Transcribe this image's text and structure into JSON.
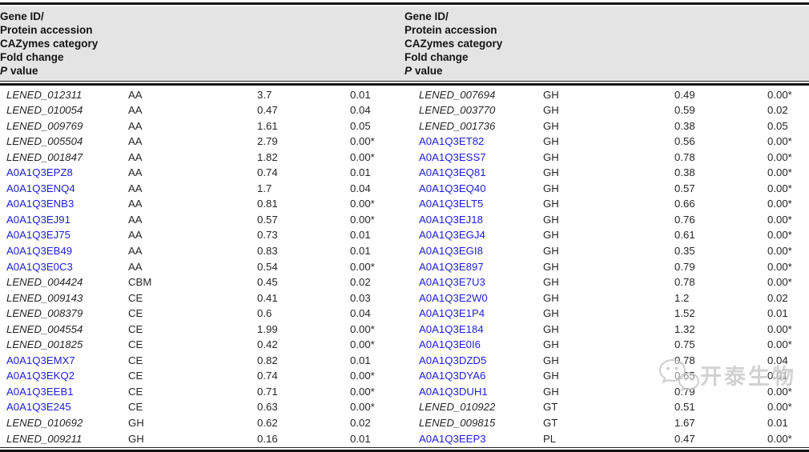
{
  "table": {
    "header": {
      "gene_id_line1": "Gene ID/",
      "gene_id_line2": "Protein accession",
      "cazymes": "CAZymes category",
      "fold_change": "Fold change",
      "p_label": "P",
      "p_rest": "value"
    },
    "left_rows": [
      {
        "id": "LENED_012311",
        "type": "gene",
        "category": "AA",
        "fold_change": "3.7",
        "p_value": "0.01"
      },
      {
        "id": "LENED_010054",
        "type": "gene",
        "category": "AA",
        "fold_change": "0.47",
        "p_value": "0.04"
      },
      {
        "id": "LENED_009769",
        "type": "gene",
        "category": "AA",
        "fold_change": "1.61",
        "p_value": "0.05"
      },
      {
        "id": "LENED_005504",
        "type": "gene",
        "category": "AA",
        "fold_change": "2.79",
        "p_value": "0.00*"
      },
      {
        "id": "LENED_001847",
        "type": "gene",
        "category": "AA",
        "fold_change": "1.82",
        "p_value": "0.00*"
      },
      {
        "id": "A0A1Q3EPZ8",
        "type": "accession",
        "category": "AA",
        "fold_change": "0.74",
        "p_value": "0.01"
      },
      {
        "id": "A0A1Q3ENQ4",
        "type": "accession",
        "category": "AA",
        "fold_change": "1.7",
        "p_value": "0.04"
      },
      {
        "id": "A0A1Q3ENB3",
        "type": "accession",
        "category": "AA",
        "fold_change": "0.81",
        "p_value": "0.00*"
      },
      {
        "id": "A0A1Q3EJ91",
        "type": "accession",
        "category": "AA",
        "fold_change": "0.57",
        "p_value": "0.00*"
      },
      {
        "id": "A0A1Q3EJ75",
        "type": "accession",
        "category": "AA",
        "fold_change": "0.73",
        "p_value": "0.01"
      },
      {
        "id": "A0A1Q3EB49",
        "type": "accession",
        "category": "AA",
        "fold_change": "0.83",
        "p_value": "0.01"
      },
      {
        "id": "A0A1Q3E0C3",
        "type": "accession",
        "category": "AA",
        "fold_change": "0.54",
        "p_value": "0.00*"
      },
      {
        "id": "LENED_004424",
        "type": "gene",
        "category": "CBM",
        "fold_change": "0.45",
        "p_value": "0.02"
      },
      {
        "id": "LENED_009143",
        "type": "gene",
        "category": "CE",
        "fold_change": "0.41",
        "p_value": "0.03"
      },
      {
        "id": "LENED_008379",
        "type": "gene",
        "category": "CE",
        "fold_change": "0.6",
        "p_value": "0.04"
      },
      {
        "id": "LENED_004554",
        "type": "gene",
        "category": "CE",
        "fold_change": "1.99",
        "p_value": "0.00*"
      },
      {
        "id": "LENED_001825",
        "type": "gene",
        "category": "CE",
        "fold_change": "0.42",
        "p_value": "0.00*"
      },
      {
        "id": "A0A1Q3EMX7",
        "type": "accession",
        "category": "CE",
        "fold_change": "0.82",
        "p_value": "0.01"
      },
      {
        "id": "A0A1Q3EKQ2",
        "type": "accession",
        "category": "CE",
        "fold_change": "0.74",
        "p_value": "0.00*"
      },
      {
        "id": "A0A1Q3EEB1",
        "type": "accession",
        "category": "CE",
        "fold_change": "0.71",
        "p_value": "0.00*"
      },
      {
        "id": "A0A1Q3E245",
        "type": "accession",
        "category": "CE",
        "fold_change": "0.63",
        "p_value": "0.00*"
      },
      {
        "id": "LENED_010692",
        "type": "gene",
        "category": "GH",
        "fold_change": "0.62",
        "p_value": "0.02"
      },
      {
        "id": "LENED_009211",
        "type": "gene",
        "category": "GH",
        "fold_change": "0.16",
        "p_value": "0.01"
      }
    ],
    "right_rows": [
      {
        "id": "LENED_007694",
        "type": "gene",
        "category": "GH",
        "fold_change": "0.49",
        "p_value": "0.00*"
      },
      {
        "id": "LENED_003770",
        "type": "gene",
        "category": "GH",
        "fold_change": "0.59",
        "p_value": "0.02"
      },
      {
        "id": "LENED_001736",
        "type": "gene",
        "category": "GH",
        "fold_change": "0.38",
        "p_value": "0.05"
      },
      {
        "id": "A0A1Q3ET82",
        "type": "accession",
        "category": "GH",
        "fold_change": "0.56",
        "p_value": "0.00*"
      },
      {
        "id": "A0A1Q3ESS7",
        "type": "accession",
        "category": "GH",
        "fold_change": "0.78",
        "p_value": "0.00*"
      },
      {
        "id": "A0A1Q3EQ81",
        "type": "accession",
        "category": "GH",
        "fold_change": "0.38",
        "p_value": "0.00*"
      },
      {
        "id": "A0A1Q3EQ40",
        "type": "accession",
        "category": "GH",
        "fold_change": "0.57",
        "p_value": "0.00*"
      },
      {
        "id": "A0A1Q3ELT5",
        "type": "accession",
        "category": "GH",
        "fold_change": "0.66",
        "p_value": "0.00*"
      },
      {
        "id": "A0A1Q3EJ18",
        "type": "accession",
        "category": "GH",
        "fold_change": "0.76",
        "p_value": "0.00*"
      },
      {
        "id": "A0A1Q3EGJ4",
        "type": "accession",
        "category": "GH",
        "fold_change": "0.61",
        "p_value": "0.00*"
      },
      {
        "id": "A0A1Q3EGI8",
        "type": "accession",
        "category": "GH",
        "fold_change": "0.35",
        "p_value": "0.00*"
      },
      {
        "id": "A0A1Q3E897",
        "type": "accession",
        "category": "GH",
        "fold_change": "0.79",
        "p_value": "0.00*"
      },
      {
        "id": "A0A1Q3E7U3",
        "type": "accession",
        "category": "GH",
        "fold_change": "0.78",
        "p_value": "0.00*"
      },
      {
        "id": "A0A1Q3E2W0",
        "type": "accession",
        "category": "GH",
        "fold_change": "1.2",
        "p_value": "0.02"
      },
      {
        "id": "A0A1Q3E1P4",
        "type": "accession",
        "category": "GH",
        "fold_change": "1.52",
        "p_value": "0.01"
      },
      {
        "id": "A0A1Q3E184",
        "type": "accession",
        "category": "GH",
        "fold_change": "1.32",
        "p_value": "0.00*"
      },
      {
        "id": "A0A1Q3E0I6",
        "type": "accession",
        "category": "GH",
        "fold_change": "0.75",
        "p_value": "0.00*"
      },
      {
        "id": "A0A1Q3DZD5",
        "type": "accession",
        "category": "GH",
        "fold_change": "0.78",
        "p_value": "0.04"
      },
      {
        "id": "A0A1Q3DYA6",
        "type": "accession",
        "category": "GH",
        "fold_change": "0.65",
        "p_value": "0.01"
      },
      {
        "id": "A0A1Q3DUH1",
        "type": "accession",
        "category": "GH",
        "fold_change": "0.79",
        "p_value": "0.00*"
      },
      {
        "id": "LENED_010922",
        "type": "gene",
        "category": "GT",
        "fold_change": "0.51",
        "p_value": "0.00*"
      },
      {
        "id": "LENED_009815",
        "type": "gene",
        "category": "GT",
        "fold_change": "1.67",
        "p_value": "0.01"
      },
      {
        "id": "A0A1Q3EEP3",
        "type": "accession",
        "category": "PL",
        "fold_change": "0.47",
        "p_value": "0.00*"
      }
    ]
  },
  "watermark": {
    "text": "开泰生物",
    "icon": "wechat-speech-bubbles-icon"
  },
  "colors": {
    "accession_blue": "#1e1edd",
    "header_bg": "#e4e4e4",
    "rule_black": "#141414",
    "watermark_gray": "#cbcbcb"
  }
}
